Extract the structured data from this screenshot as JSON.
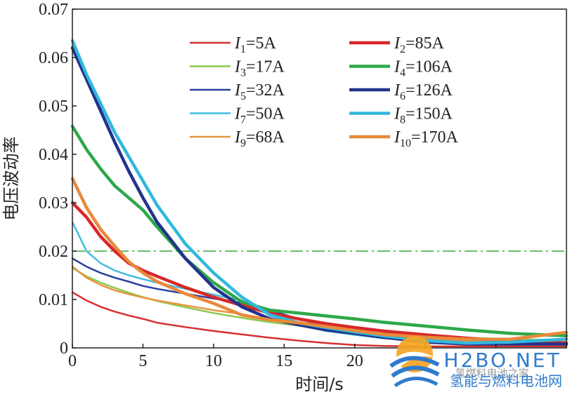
{
  "chart_data": {
    "type": "line",
    "title": "",
    "xlabel": "时间/s",
    "ylabel": "电压波动率",
    "xlim": [
      0,
      35
    ],
    "ylim": [
      0,
      0.07
    ],
    "x_ticks": [
      0,
      5,
      10,
      15,
      20,
      25,
      30,
      35
    ],
    "x_tick_labels": [
      "0",
      "5",
      "10",
      "15",
      "20",
      "",
      "",
      ""
    ],
    "y_ticks": [
      0,
      0.01,
      0.02,
      0.03,
      0.04,
      0.05,
      0.06,
      0.07
    ],
    "y_tick_labels": [
      "0",
      "0.01",
      "0.02",
      "0.03",
      "0.04",
      "0.05",
      "0.06",
      "0.07"
    ],
    "legend_position": "top-right",
    "reference_line": {
      "y": 0.02,
      "color": "#38a838",
      "style": "dash-dot"
    },
    "series": [
      {
        "name": "I1=5A",
        "sym": "I",
        "sub": "1",
        "val": "=5A",
        "color": "#d83030",
        "width": 2.5,
        "x": [
          0,
          1,
          2,
          3,
          4,
          5,
          6,
          8,
          10,
          12,
          14,
          16,
          18,
          20,
          22,
          25,
          28,
          31,
          35
        ],
        "y": [
          0.0115,
          0.0098,
          0.0085,
          0.0075,
          0.0067,
          0.006,
          0.0052,
          0.0043,
          0.0035,
          0.0028,
          0.0021,
          0.0015,
          0.001,
          0.0006,
          0.0004,
          0.0003,
          0.0003,
          0.0003,
          0.0003
        ]
      },
      {
        "name": "I2=85A",
        "sym": "I",
        "sub": "2",
        "val": "=85A",
        "color": "#d82828",
        "width": 4.5,
        "x": [
          0,
          1,
          2,
          3,
          4,
          5,
          6,
          8,
          10,
          12,
          14,
          16,
          18,
          20,
          22,
          25,
          28,
          31,
          35
        ],
        "y": [
          0.03,
          0.027,
          0.023,
          0.02,
          0.0175,
          0.016,
          0.0148,
          0.0125,
          0.0105,
          0.0088,
          0.0072,
          0.006,
          0.005,
          0.0042,
          0.0035,
          0.0027,
          0.002,
          0.0014,
          0.001
        ]
      },
      {
        "name": "I3=17A",
        "sym": "I",
        "sub": "3",
        "val": "=17A",
        "color": "#8cc850",
        "width": 2.5,
        "x": [
          0,
          1,
          2,
          3,
          4,
          5,
          6,
          8,
          10,
          12,
          14,
          16,
          18,
          20,
          22,
          25,
          28,
          31,
          35
        ],
        "y": [
          0.0165,
          0.0148,
          0.0135,
          0.0124,
          0.0114,
          0.0105,
          0.0097,
          0.0084,
          0.0072,
          0.0062,
          0.0053,
          0.0046,
          0.004,
          0.0034,
          0.003,
          0.0025,
          0.0021,
          0.0018,
          0.0016
        ]
      },
      {
        "name": "I4=106A",
        "sym": "I",
        "sub": "4",
        "val": "=106A",
        "color": "#2ea84a",
        "width": 4.5,
        "x": [
          0,
          1,
          2,
          3,
          4,
          5,
          6,
          8,
          10,
          12,
          14,
          16,
          18,
          20,
          22,
          25,
          28,
          31,
          35
        ],
        "y": [
          0.0458,
          0.041,
          0.037,
          0.0335,
          0.031,
          0.0285,
          0.025,
          0.0185,
          0.0135,
          0.0095,
          0.0078,
          0.0072,
          0.0066,
          0.006,
          0.0053,
          0.0045,
          0.0037,
          0.003,
          0.0025
        ]
      },
      {
        "name": "I5=32A",
        "sym": "I",
        "sub": "5",
        "val": "=32A",
        "color": "#2a3e9e",
        "width": 2.5,
        "x": [
          0,
          1,
          2,
          3,
          4,
          5,
          6,
          8,
          10,
          12,
          14,
          16,
          18,
          20,
          22,
          25,
          28,
          31,
          35
        ],
        "y": [
          0.0185,
          0.0168,
          0.0155,
          0.0145,
          0.0137,
          0.0128,
          0.0122,
          0.0112,
          0.0102,
          0.0093,
          0.0078,
          0.006,
          0.0045,
          0.0033,
          0.0025,
          0.0017,
          0.0012,
          0.001,
          0.0008
        ]
      },
      {
        "name": "I6=126A",
        "sym": "I",
        "sub": "6",
        "val": "=126A",
        "color": "#22338c",
        "width": 4.5,
        "x": [
          0,
          1,
          2,
          3,
          4,
          5,
          6,
          8,
          10,
          12,
          14,
          16,
          18,
          20,
          22,
          25,
          28,
          31,
          35
        ],
        "y": [
          0.062,
          0.0555,
          0.049,
          0.0425,
          0.0365,
          0.031,
          0.026,
          0.0185,
          0.0125,
          0.0085,
          0.006,
          0.0048,
          0.0037,
          0.003,
          0.0022,
          0.0012,
          0.0008,
          0.0008,
          0.0008
        ]
      },
      {
        "name": "I7=50A",
        "sym": "I",
        "sub": "7",
        "val": "=50A",
        "color": "#40bde0",
        "width": 2.5,
        "x": [
          0,
          1,
          2,
          3,
          4,
          5,
          6,
          8,
          10,
          12,
          14,
          16,
          18,
          20,
          22,
          25,
          28,
          31,
          35
        ],
        "y": [
          0.026,
          0.02,
          0.0175,
          0.016,
          0.015,
          0.0142,
          0.0135,
          0.0122,
          0.011,
          0.0098,
          0.0068,
          0.0048,
          0.0035,
          0.0027,
          0.002,
          0.0014,
          0.0011,
          0.001,
          0.001
        ]
      },
      {
        "name": "I8=150A",
        "sym": "I",
        "sub": "8",
        "val": "=150A",
        "color": "#32b8dc",
        "width": 4.5,
        "x": [
          0,
          1,
          2,
          3,
          4,
          5,
          6,
          8,
          10,
          12,
          14,
          16,
          18,
          20,
          22,
          25,
          28,
          31,
          35
        ],
        "y": [
          0.0635,
          0.0565,
          0.0505,
          0.0445,
          0.0395,
          0.0345,
          0.0295,
          0.0215,
          0.0155,
          0.0105,
          0.0068,
          0.0052,
          0.0042,
          0.0033,
          0.0025,
          0.0015,
          0.001,
          0.0012,
          0.0018
        ]
      },
      {
        "name": "I9=68A",
        "sym": "I",
        "sub": "9",
        "val": "=68A",
        "color": "#e8953c",
        "width": 2.5,
        "x": [
          0,
          1,
          2,
          3,
          4,
          5,
          6,
          8,
          10,
          12,
          14,
          16,
          18,
          20,
          22,
          25,
          28,
          31,
          35
        ],
        "y": [
          0.0168,
          0.0145,
          0.013,
          0.0119,
          0.0111,
          0.0104,
          0.0098,
          0.0088,
          0.0078,
          0.007,
          0.0058,
          0.0047,
          0.0038,
          0.0031,
          0.0025,
          0.0018,
          0.0014,
          0.0013,
          0.0015
        ]
      },
      {
        "name": "I10=170A",
        "sym": "I",
        "sub": "10",
        "val": "=170A",
        "color": "#e8893a",
        "width": 4.5,
        "x": [
          0,
          1,
          2,
          3,
          4,
          5,
          6,
          8,
          10,
          12,
          14,
          16,
          18,
          20,
          22,
          25,
          28,
          31,
          35
        ],
        "y": [
          0.035,
          0.029,
          0.0245,
          0.021,
          0.0178,
          0.0155,
          0.0137,
          0.0112,
          0.0092,
          0.0068,
          0.0058,
          0.0052,
          0.0044,
          0.0036,
          0.0028,
          0.0022,
          0.0018,
          0.0018,
          0.0032
        ]
      }
    ]
  },
  "watermark": {
    "line1": "氢燃料电池之家",
    "brand": "H2BO.NET",
    "line2": "氢能与燃料电池网"
  }
}
